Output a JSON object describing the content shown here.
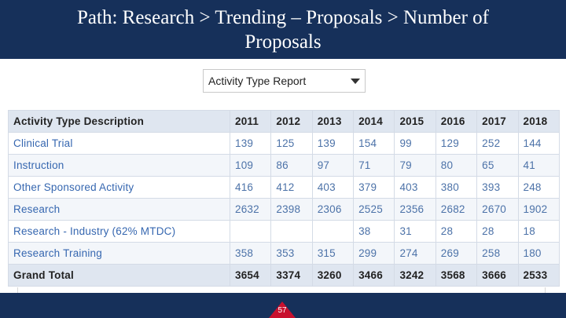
{
  "slide": {
    "title": "Path: Research > Trending – Proposals > Number of Proposals",
    "page_number": "57",
    "colors": {
      "header_bg": "#16305a",
      "badge": "#c8102e",
      "table_header": "#dfe6f0",
      "link_text": "#3667b0"
    }
  },
  "report_selector": {
    "value": "Activity Type Report"
  },
  "table": {
    "columns": [
      "Activity Type Description",
      "2011",
      "2012",
      "2013",
      "2014",
      "2015",
      "2016",
      "2017",
      "2018"
    ],
    "rows": [
      [
        "Clinical Trial",
        "139",
        "125",
        "139",
        "154",
        "99",
        "129",
        "252",
        "144"
      ],
      [
        "Instruction",
        "109",
        "86",
        "97",
        "71",
        "79",
        "80",
        "65",
        "41"
      ],
      [
        "Other Sponsored Activity",
        "416",
        "412",
        "403",
        "379",
        "403",
        "380",
        "393",
        "248"
      ],
      [
        "Research",
        "2632",
        "2398",
        "2306",
        "2525",
        "2356",
        "2682",
        "2670",
        "1902"
      ],
      [
        "Research - Industry (62% MTDC)",
        "",
        "",
        "",
        "38",
        "31",
        "28",
        "28",
        "18"
      ],
      [
        "Research Training",
        "358",
        "353",
        "315",
        "299",
        "274",
        "269",
        "258",
        "180"
      ]
    ],
    "total": [
      "Grand Total",
      "3654",
      "3374",
      "3260",
      "3466",
      "3242",
      "3568",
      "3666",
      "2533"
    ]
  }
}
